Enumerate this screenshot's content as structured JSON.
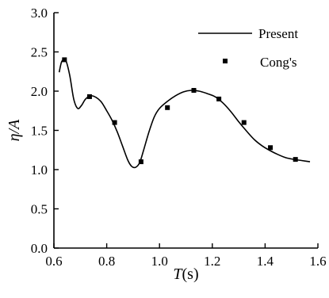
{
  "chart_data": {
    "type": "line",
    "xlabel": {
      "italic": "T",
      "rest": "(s)"
    },
    "ylabel": {
      "italic": "η/A",
      "rest": ""
    },
    "xlim": [
      0.6,
      1.6
    ],
    "ylim": [
      0.0,
      3.0
    ],
    "xticks": [
      "0.6",
      "0.8",
      "1.0",
      "1.2",
      "1.4",
      "1.6"
    ],
    "yticks": [
      "0.0",
      "0.5",
      "1.0",
      "1.5",
      "2.0",
      "2.5",
      "3.0"
    ],
    "grid": false,
    "legend_position": "top-right",
    "series": [
      {
        "name": "Present",
        "style": "line",
        "color": "#000000",
        "x": [
          0.62,
          0.63,
          0.645,
          0.66,
          0.675,
          0.69,
          0.705,
          0.72,
          0.74,
          0.76,
          0.78,
          0.8,
          0.82,
          0.84,
          0.86,
          0.88,
          0.895,
          0.91,
          0.925,
          0.94,
          0.96,
          0.98,
          1.0,
          1.03,
          1.06,
          1.09,
          1.12,
          1.15,
          1.18,
          1.21,
          1.24,
          1.27,
          1.3,
          1.33,
          1.36,
          1.39,
          1.42,
          1.45,
          1.48,
          1.51,
          1.54,
          1.57
        ],
        "y": [
          2.24,
          2.38,
          2.39,
          2.2,
          1.9,
          1.78,
          1.82,
          1.9,
          1.94,
          1.92,
          1.86,
          1.75,
          1.63,
          1.48,
          1.3,
          1.12,
          1.04,
          1.03,
          1.09,
          1.25,
          1.48,
          1.67,
          1.78,
          1.87,
          1.94,
          1.99,
          2.01,
          2.0,
          1.97,
          1.93,
          1.85,
          1.74,
          1.61,
          1.49,
          1.38,
          1.3,
          1.24,
          1.19,
          1.15,
          1.13,
          1.115,
          1.1
        ]
      },
      {
        "name": "Cong's",
        "style": "markers",
        "marker": "square",
        "color": "#000000",
        "x": [
          0.64,
          0.735,
          0.83,
          0.93,
          1.03,
          1.13,
          1.225,
          1.32,
          1.42,
          1.515
        ],
        "y": [
          2.4,
          1.93,
          1.6,
          1.1,
          1.79,
          2.01,
          1.9,
          1.6,
          1.28,
          1.13
        ]
      }
    ]
  }
}
